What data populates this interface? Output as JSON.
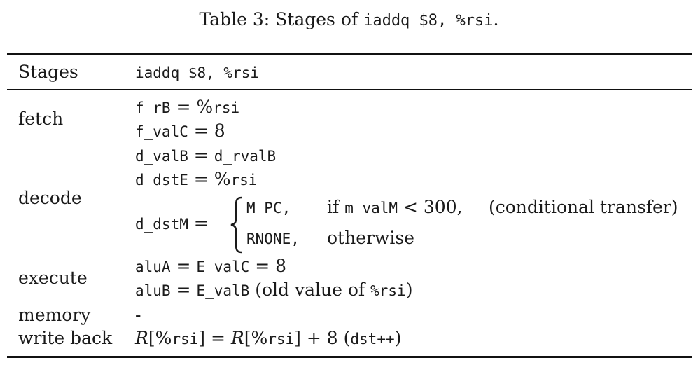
{
  "caption": {
    "prefix": "Table 3: Stages of ",
    "code": "iaddq $8, %rsi",
    "suffix": "."
  },
  "header": {
    "col1": "Stages",
    "col2": "iaddq $8, %rsi"
  },
  "rows": {
    "fetch": {
      "label": "fetch",
      "line1_var": "f_rB",
      "line1_eq": " = ",
      "line1_pct": "%",
      "line1_val": "rsi",
      "line2_var": "f_valC",
      "line2_eq": " = ",
      "line2_val": "8"
    },
    "decode": {
      "label": "decode",
      "line1_var": "d_valB",
      "line1_eq": " = ",
      "line1_val": "d_rvalB",
      "line2_var": "d_dstE",
      "line2_eq": " = ",
      "line2_pct": "%",
      "line2_val": "rsi",
      "line3_var": "d_dstM",
      "line3_eq": " = ",
      "case1_val": "M_PC,",
      "case1_if": "if ",
      "case1_cond_var": "m_valM",
      "case1_cond_rest": " < 300,",
      "case1_note": "(conditional transfer)",
      "case2_val": "RNONE,",
      "case2_cond": "otherwise"
    },
    "execute": {
      "label": "execute",
      "line1_var": "aluA",
      "line1_eq": " = ",
      "line1_mid": "E_valC",
      "line1_eq2": " = ",
      "line1_val": "8",
      "line2_var": "aluB",
      "line2_eq": " = ",
      "line2_mid": "E_valB",
      "line2_note_pre": " (old value of ",
      "line2_note_code": "%rsi",
      "line2_note_post": ")"
    },
    "memory": {
      "label": "memory",
      "value": "-"
    },
    "writeback": {
      "label": "write back",
      "lhs_R": "R",
      "lhs_open": "[%",
      "lhs_reg": "rsi",
      "lhs_close": "]",
      "eq": " = ",
      "rhs_R": "R",
      "rhs_open": "[%",
      "rhs_reg": "rsi",
      "rhs_close": "]",
      "rhs_plus": " + 8 (",
      "rhs_code": "dst++",
      "rhs_end": ")"
    }
  }
}
